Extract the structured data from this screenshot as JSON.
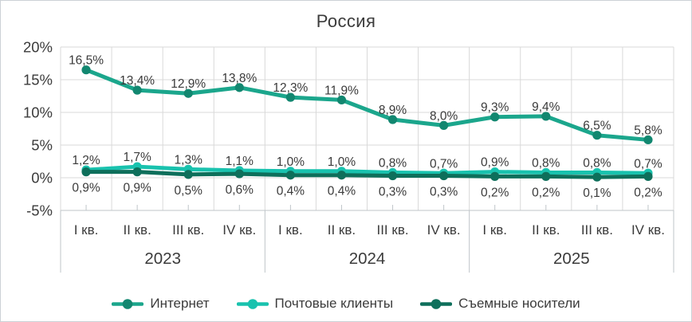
{
  "title": "Россия",
  "chart_data": {
    "type": "line",
    "title": "Россия",
    "quarters": [
      "I кв.",
      "II кв.",
      "III кв.",
      "IV кв."
    ],
    "years": [
      "2023",
      "2024",
      "2025"
    ],
    "y_ticks": [
      {
        "label": "20%",
        "value": 20
      },
      {
        "label": "15%",
        "value": 15
      },
      {
        "label": "10%",
        "value": 10
      },
      {
        "label": "5%",
        "value": 5
      },
      {
        "label": "0%",
        "value": 0
      },
      {
        "label": "-5%",
        "value": -5
      }
    ],
    "ylim": [
      -5,
      20
    ],
    "grid": true,
    "legend_position": "bottom",
    "series": [
      {
        "name": "Интернет",
        "color": "#1BA68C",
        "marker_color": "#128770",
        "label_position": "above",
        "values": [
          16.5,
          13.4,
          12.9,
          13.8,
          12.3,
          11.9,
          8.9,
          8.0,
          9.3,
          9.4,
          6.5,
          5.8
        ],
        "labels": [
          "16,5%",
          "13,4%",
          "12,9%",
          "13,8%",
          "12,3%",
          "11,9%",
          "8,9%",
          "8,0%",
          "9,3%",
          "9,4%",
          "6,5%",
          "5,8%"
        ]
      },
      {
        "name": "Почтовые клиенты",
        "color": "#19C2AE",
        "marker_color": "#19C2AE",
        "label_position": "above",
        "values": [
          1.2,
          1.7,
          1.3,
          1.1,
          1.0,
          1.0,
          0.8,
          0.7,
          0.9,
          0.8,
          0.8,
          0.7
        ],
        "labels": [
          "1,2%",
          "1,7%",
          "1,3%",
          "1,1%",
          "1,0%",
          "1,0%",
          "0,8%",
          "0,7%",
          "0,9%",
          "0,8%",
          "0,8%",
          "0,7%"
        ]
      },
      {
        "name": "Съемные носители",
        "color": "#0E6F5B",
        "marker_color": "#0E6F5B",
        "label_position": "below",
        "values": [
          0.9,
          0.9,
          0.5,
          0.6,
          0.4,
          0.4,
          0.3,
          0.3,
          0.2,
          0.2,
          0.1,
          0.2
        ],
        "labels": [
          "0,9%",
          "0,9%",
          "0,5%",
          "0,6%",
          "0,4%",
          "0,4%",
          "0,3%",
          "0,3%",
          "0,2%",
          "0,2%",
          "0,1%",
          "0,2%"
        ]
      }
    ],
    "colors": {
      "text": "#3b3b3b",
      "gridline": "#d9d9d9",
      "axis": "#bfc5c9"
    }
  }
}
